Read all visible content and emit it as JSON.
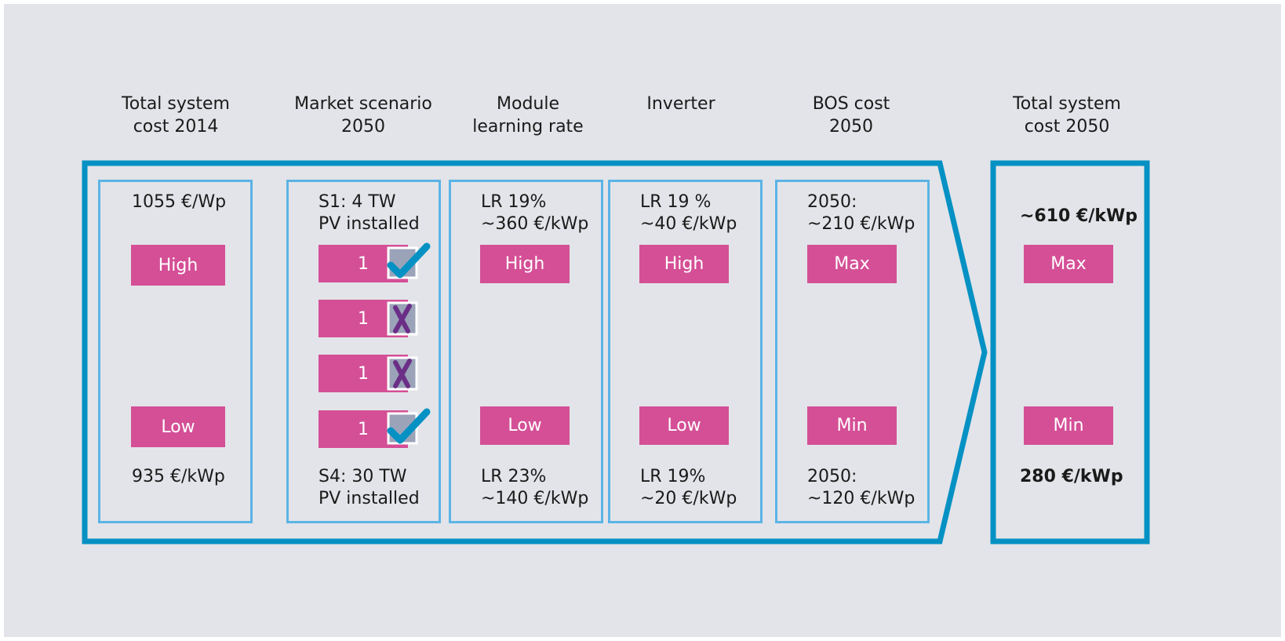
{
  "colors": {
    "background": "#e3e4e9",
    "frame": "#0591c3",
    "panel_border": "#5bb4e5",
    "pill": "#d44f96",
    "check": "#0591c3",
    "cross": "#6b2e87"
  },
  "headings": {
    "total_2014": [
      "Total system",
      "cost 2014"
    ],
    "market": [
      "Market scenario",
      "2050"
    ],
    "module": [
      "Module",
      "learning rate"
    ],
    "inverter": [
      "Inverter"
    ],
    "bos": [
      "BOS cost",
      "2050"
    ],
    "total_2050": [
      "Total system",
      "cost 2050"
    ]
  },
  "columns": {
    "total_2014": {
      "top": [
        "1055 €/Wp"
      ],
      "high": "High",
      "low": "Low",
      "bottom": [
        "935 €/kWp"
      ]
    },
    "market": {
      "top": [
        "S1: 4 TW",
        "PV installed"
      ],
      "scenarios": [
        {
          "label": "1",
          "mark": "check-icon"
        },
        {
          "label": "1",
          "mark": "cross-icon"
        },
        {
          "label": "1",
          "mark": "cross-icon"
        },
        {
          "label": "1",
          "mark": "check-icon"
        }
      ],
      "bottom": [
        "S4: 30 TW",
        "PV installed"
      ]
    },
    "module": {
      "top": [
        "LR 19%",
        "~360 €/kWp"
      ],
      "high": "High",
      "low": "Low",
      "bottom": [
        "LR 23%",
        "~140 €/kWp"
      ]
    },
    "inverter": {
      "top": [
        "LR 19 %",
        "~40 €/kWp"
      ],
      "high": "High",
      "low": "Low",
      "bottom": [
        "LR 19%",
        "~20 €/kWp"
      ]
    },
    "bos": {
      "top": [
        "2050:",
        "~210 €/kWp"
      ],
      "high": "Max",
      "low": "Min",
      "bottom": [
        "2050:",
        "~120 €/kWp"
      ]
    },
    "total_2050": {
      "top": "~610 €/kWp",
      "high": "Max",
      "low": "Min",
      "bottom": "280 €/kWp"
    }
  }
}
